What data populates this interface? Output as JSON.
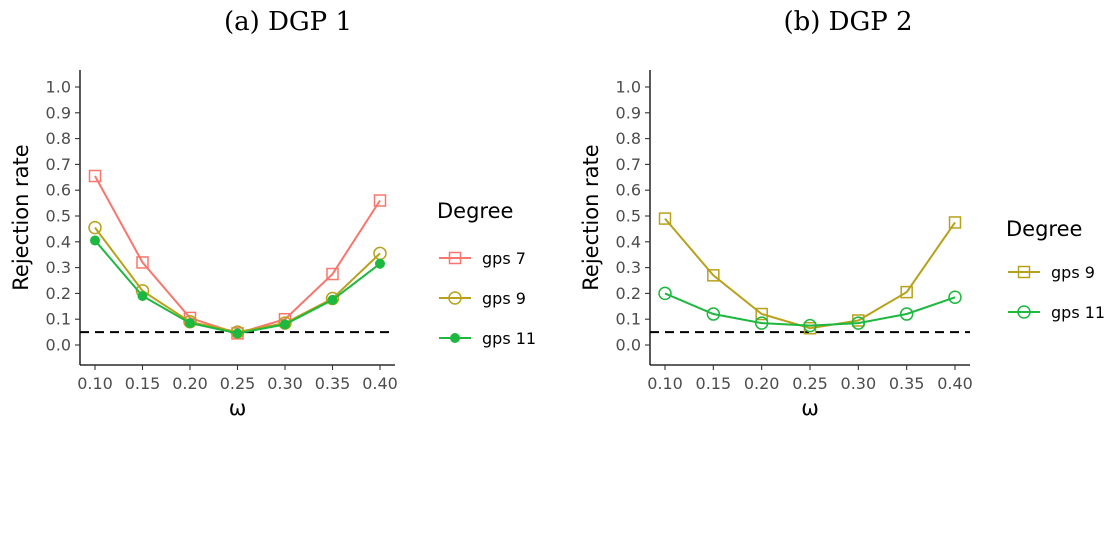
{
  "chart_data": [
    {
      "type": "line",
      "title": "(a) DGP 1",
      "xlabel": "ω",
      "ylabel": "Rejection rate",
      "x": [
        0.1,
        0.15,
        0.2,
        0.25,
        0.3,
        0.35,
        0.4
      ],
      "x_tick_labels": [
        "0.10",
        "0.15",
        "0.20",
        "0.25",
        "0.30",
        "0.35",
        "0.40"
      ],
      "y_ticks": [
        0.0,
        0.1,
        0.2,
        0.3,
        0.4,
        0.5,
        0.6,
        0.7,
        0.8,
        0.9,
        1.0
      ],
      "y_tick_labels": [
        "0.0",
        "0.1",
        "0.2",
        "0.3",
        "0.4",
        "0.5",
        "0.6",
        "0.7",
        "0.8",
        "0.9",
        "1.0"
      ],
      "ylim": [
        0.0,
        1.0
      ],
      "reference_line": 0.05,
      "legend_title": "Degree",
      "legend_position": "right",
      "series": [
        {
          "name": "gps 7",
          "color": "#F8766D",
          "marker": "open-square",
          "values": [
            0.655,
            0.32,
            0.105,
            0.045,
            0.1,
            0.275,
            0.56
          ]
        },
        {
          "name": "gps 9",
          "color": "#B8A11A",
          "marker": "open-circle",
          "values": [
            0.455,
            0.21,
            0.09,
            0.05,
            0.085,
            0.18,
            0.355
          ]
        },
        {
          "name": "gps 11",
          "color": "#1DB83F",
          "marker": "filled-circle",
          "values": [
            0.405,
            0.19,
            0.085,
            0.045,
            0.08,
            0.175,
            0.315
          ]
        }
      ]
    },
    {
      "type": "line",
      "title": "(b) DGP 2",
      "xlabel": "ω",
      "ylabel": "Rejection rate",
      "x": [
        0.1,
        0.15,
        0.2,
        0.25,
        0.3,
        0.35,
        0.4
      ],
      "x_tick_labels": [
        "0.10",
        "0.15",
        "0.20",
        "0.25",
        "0.30",
        "0.35",
        "0.40"
      ],
      "y_ticks": [
        0.0,
        0.1,
        0.2,
        0.3,
        0.4,
        0.5,
        0.6,
        0.7,
        0.8,
        0.9,
        1.0
      ],
      "y_tick_labels": [
        "0.0",
        "0.1",
        "0.2",
        "0.3",
        "0.4",
        "0.5",
        "0.6",
        "0.7",
        "0.8",
        "0.9",
        "1.0"
      ],
      "ylim": [
        0.0,
        1.0
      ],
      "reference_line": 0.05,
      "legend_title": "Degree",
      "legend_position": "right",
      "series": [
        {
          "name": "gps 9",
          "color": "#B8A11A",
          "marker": "open-square",
          "values": [
            0.49,
            0.27,
            0.12,
            0.065,
            0.095,
            0.205,
            0.475
          ]
        },
        {
          "name": "gps 11",
          "color": "#1DB83F",
          "marker": "open-circle",
          "values": [
            0.2,
            0.12,
            0.085,
            0.075,
            0.085,
            0.12,
            0.185
          ]
        }
      ]
    }
  ]
}
